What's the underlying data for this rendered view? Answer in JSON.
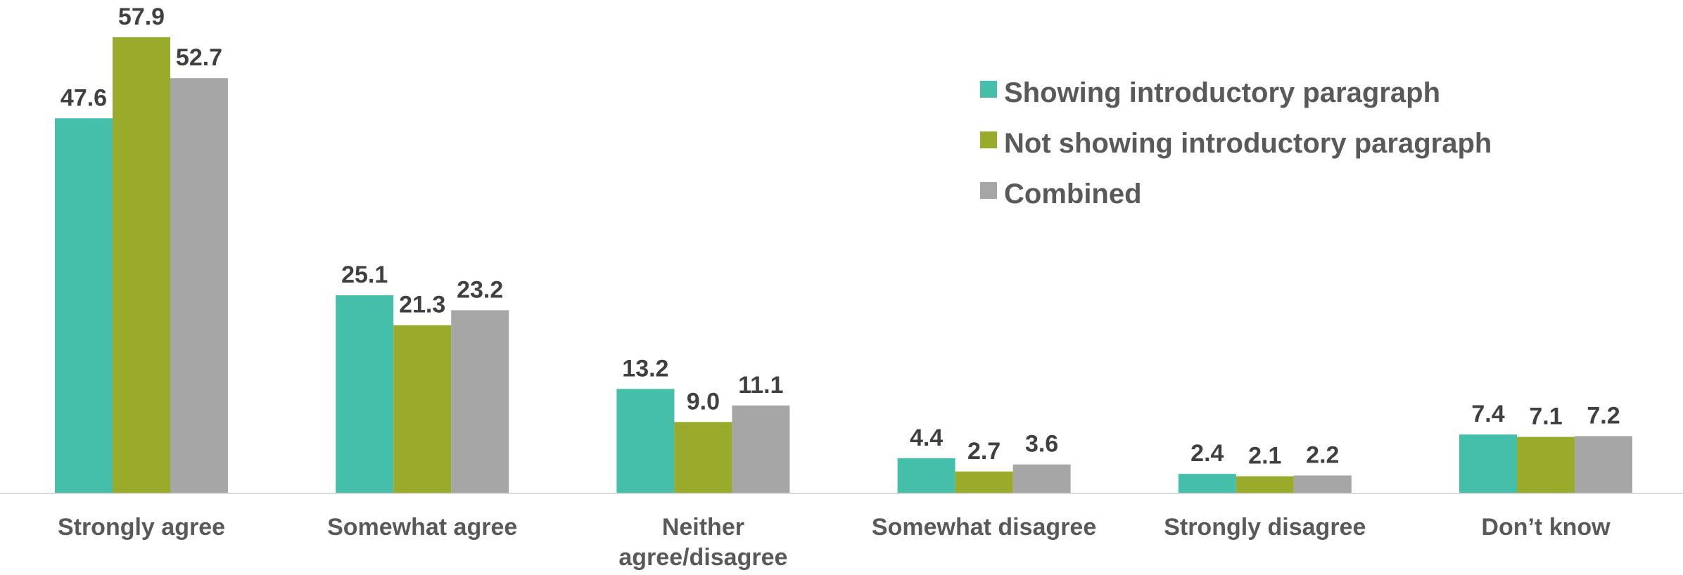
{
  "chart_data": {
    "type": "bar",
    "categories": [
      [
        "Strongly agree"
      ],
      [
        "Somewhat agree"
      ],
      [
        "Neither",
        "agree/disagree"
      ],
      [
        "Somewhat disagree"
      ],
      [
        "Strongly disagree"
      ],
      [
        "Don’t know"
      ]
    ],
    "series": [
      {
        "name": "Showing introductory paragraph",
        "color": "#45BFA9",
        "values": [
          47.6,
          25.1,
          13.2,
          4.4,
          2.4,
          7.4
        ],
        "labels": [
          "47.6",
          "25.1",
          "13.2",
          "4.4",
          "2.4",
          "7.4"
        ]
      },
      {
        "name": "Not showing introductory paragraph",
        "color": "#9AAB2C",
        "values": [
          57.9,
          21.3,
          9.0,
          2.7,
          2.1,
          7.1
        ],
        "labels": [
          "57.9",
          "21.3",
          "9.0",
          "2.7",
          "2.1",
          "7.1"
        ]
      },
      {
        "name": "Combined",
        "color": "#A6A6A6",
        "values": [
          52.7,
          23.2,
          11.1,
          3.6,
          2.2,
          7.2
        ],
        "labels": [
          "52.7",
          "23.2",
          "11.1",
          "3.6",
          "2.2",
          "7.2"
        ]
      }
    ],
    "ylim": [
      0,
      63
    ],
    "grid": false,
    "legend_position": "top-right",
    "axis_color": "#D9D9D9"
  }
}
